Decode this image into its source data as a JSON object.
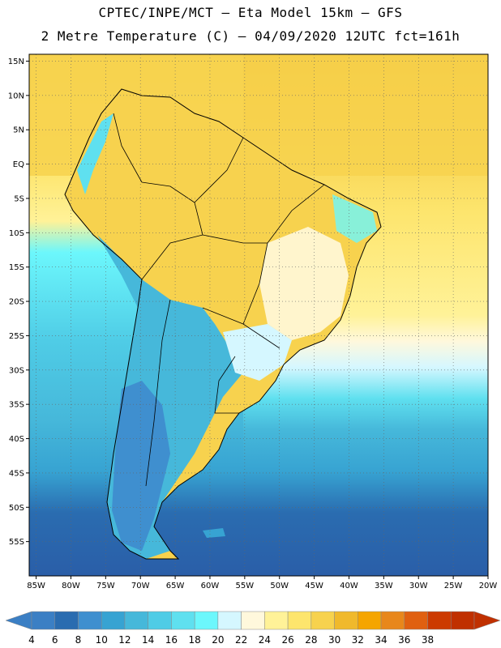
{
  "header": {
    "title_line1": "CPTEC/INPE/MCT –  Eta Model 15km – GFS",
    "title_line2": "2 Metre Temperature (C) – 04/09/2020 12UTC fct=161h"
  },
  "map": {
    "lon_range": [
      -86,
      -20
    ],
    "lat_range": [
      -60,
      16
    ],
    "lat_ticks": [
      "15N",
      "10N",
      "5N",
      "EQ",
      "5S",
      "10S",
      "15S",
      "20S",
      "25S",
      "30S",
      "35S",
      "40S",
      "45S",
      "50S",
      "55S"
    ],
    "lat_values": [
      15,
      10,
      5,
      0,
      -5,
      -10,
      -15,
      -20,
      -25,
      -30,
      -35,
      -40,
      -45,
      -50,
      -55
    ],
    "lon_ticks": [
      "85W",
      "80W",
      "75W",
      "70W",
      "65W",
      "60W",
      "55W",
      "50W",
      "45W",
      "40W",
      "35W",
      "30W",
      "25W",
      "20W"
    ],
    "lon_values": [
      -85,
      -80,
      -75,
      -70,
      -65,
      -60,
      -55,
      -50,
      -45,
      -40,
      -35,
      -30,
      -25,
      -20
    ]
  },
  "colorbar": {
    "labels": [
      "4",
      "6",
      "8",
      "10",
      "12",
      "14",
      "16",
      "18",
      "20",
      "22",
      "24",
      "26",
      "28",
      "30",
      "32",
      "34",
      "36",
      "38"
    ],
    "colors": [
      "#3b7fc4",
      "#2a6cb0",
      "#3f8fcf",
      "#37a3d2",
      "#46b8da",
      "#4fcce6",
      "#5fe0ef",
      "#6cf7fc",
      "#d5f7ff",
      "#fff8dc",
      "#fff298",
      "#fde56d",
      "#f7d24e",
      "#f0b92c",
      "#f5a500",
      "#e8871b",
      "#e06010",
      "#cc3a00",
      "#c03000"
    ],
    "arrow_left_color": "#3b7fc4",
    "arrow_right_color": "#c03000"
  }
}
